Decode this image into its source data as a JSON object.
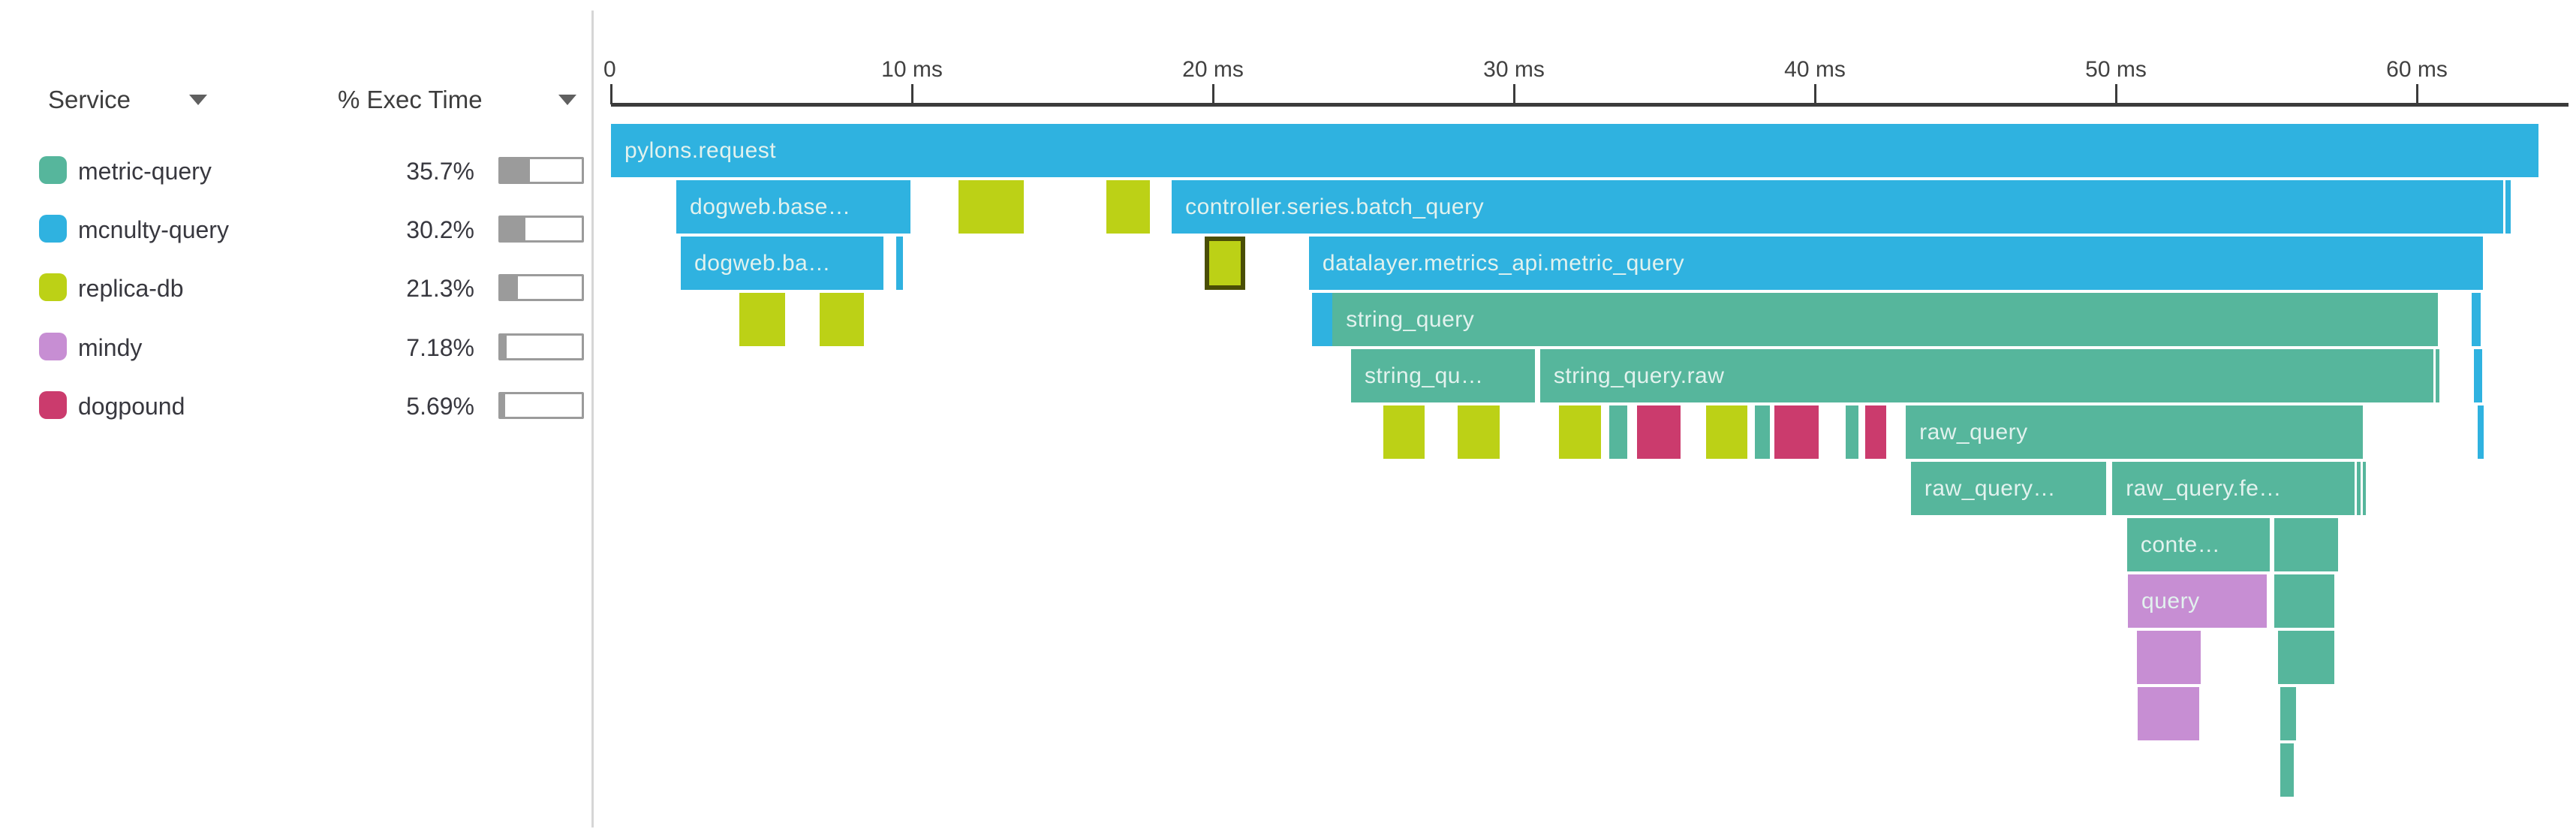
{
  "sidebar": {
    "columns": [
      {
        "label": "Service",
        "sort_icon": "triangle-down"
      },
      {
        "label": "% Exec Time",
        "sort_icon": "triangle-down"
      }
    ],
    "services": [
      {
        "name": "metric-query",
        "color": "#56B69C",
        "exec_time_pct": "35.7%",
        "pct_value": 35.7
      },
      {
        "name": "mcnulty-query",
        "color": "#2FB2E0",
        "exec_time_pct": "30.2%",
        "pct_value": 30.2
      },
      {
        "name": "replica-db",
        "color": "#BCD116",
        "exec_time_pct": "21.3%",
        "pct_value": 21.3
      },
      {
        "name": "mindy",
        "color": "#C78ED3",
        "exec_time_pct": "7.18%",
        "pct_value": 7.18
      },
      {
        "name": "dogpound",
        "color": "#CB3B6D",
        "exec_time_pct": "5.69%",
        "pct_value": 5.69
      }
    ]
  },
  "colors": {
    "services": {
      "metric-query": "#56B69C",
      "mcnulty-query": "#2FB2E0",
      "replica-db": "#BCD116",
      "mindy": "#C78ED3",
      "dogpound": "#CB3B6D"
    },
    "selected_border": "#4A4E06",
    "axis": "#3B3B3B",
    "meter": "#9B9B9B"
  },
  "chart_data": {
    "type": "flamegraph",
    "title": "",
    "unit": "ms",
    "axis": {
      "range_ms": [
        0,
        65
      ],
      "ticks": [
        {
          "ms": 0,
          "label": "0"
        },
        {
          "ms": 10,
          "label": "10 ms"
        },
        {
          "ms": 20,
          "label": "20 ms"
        },
        {
          "ms": 30,
          "label": "30 ms"
        },
        {
          "ms": 40,
          "label": "40 ms"
        },
        {
          "ms": 50,
          "label": "50 ms"
        },
        {
          "ms": 60,
          "label": "60 ms"
        }
      ]
    },
    "spans": [
      {
        "row": 1,
        "service": "mcnulty-query",
        "label": "pylons.request",
        "start_ms": 0,
        "end_ms": 64.05
      },
      {
        "row": 2,
        "service": "mcnulty-query",
        "label": "dogweb.base…",
        "start_ms": 2.17,
        "end_ms": 9.95
      },
      {
        "row": 2,
        "service": "replica-db",
        "label": "",
        "start_ms": 11.55,
        "end_ms": 13.72
      },
      {
        "row": 2,
        "service": "replica-db",
        "label": "",
        "start_ms": 16.46,
        "end_ms": 17.91
      },
      {
        "row": 2,
        "service": "mcnulty-query",
        "label": "controller.series.batch_query",
        "start_ms": 18.63,
        "end_ms": 62.87
      },
      {
        "row": 2,
        "service": "mcnulty-query",
        "label": "",
        "start_ms": 62.95,
        "end_ms": 63.12
      },
      {
        "row": 3,
        "service": "mcnulty-query",
        "label": "dogweb.ba…",
        "start_ms": 2.32,
        "end_ms": 9.05
      },
      {
        "row": 3,
        "service": "mcnulty-query",
        "label": "",
        "start_ms": 9.48,
        "end_ms": 9.7
      },
      {
        "row": 3,
        "service": "replica-db",
        "label": "",
        "start_ms": 19.73,
        "end_ms": 21.07,
        "selected": true
      },
      {
        "row": 3,
        "service": "mcnulty-query",
        "label": "datalayer.metrics_api.metric_query",
        "start_ms": 23.19,
        "end_ms": 62.19
      },
      {
        "row": 4,
        "service": "replica-db",
        "label": "",
        "start_ms": 4.26,
        "end_ms": 5.79
      },
      {
        "row": 4,
        "service": "replica-db",
        "label": "",
        "start_ms": 6.93,
        "end_ms": 8.4
      },
      {
        "row": 4,
        "service": "mcnulty-query",
        "label": "",
        "start_ms": 23.29,
        "end_ms": 23.97
      },
      {
        "row": 4,
        "service": "metric-query",
        "label": "string_query",
        "start_ms": 23.97,
        "end_ms": 60.7
      },
      {
        "row": 4,
        "service": "mcnulty-query",
        "label": "",
        "start_ms": 61.82,
        "end_ms": 62.12
      },
      {
        "row": 5,
        "service": "metric-query",
        "label": "string_qu…",
        "start_ms": 24.59,
        "end_ms": 30.7
      },
      {
        "row": 5,
        "service": "metric-query",
        "label": "string_query.raw",
        "start_ms": 30.87,
        "end_ms": 60.55
      },
      {
        "row": 5,
        "service": "metric-query",
        "label": "",
        "start_ms": 60.62,
        "end_ms": 60.74
      },
      {
        "row": 5,
        "service": "mcnulty-query",
        "label": "",
        "start_ms": 61.9,
        "end_ms": 62.17
      },
      {
        "row": 6,
        "service": "replica-db",
        "label": "",
        "start_ms": 25.66,
        "end_ms": 27.03
      },
      {
        "row": 6,
        "service": "replica-db",
        "label": "",
        "start_ms": 28.13,
        "end_ms": 29.53
      },
      {
        "row": 6,
        "service": "replica-db",
        "label": "",
        "start_ms": 31.5,
        "end_ms": 32.89
      },
      {
        "row": 6,
        "service": "metric-query",
        "label": "",
        "start_ms": 33.17,
        "end_ms": 33.77
      },
      {
        "row": 6,
        "service": "dogpound",
        "label": "",
        "start_ms": 34.09,
        "end_ms": 35.54
      },
      {
        "row": 6,
        "service": "replica-db",
        "label": "",
        "start_ms": 36.38,
        "end_ms": 37.76
      },
      {
        "row": 6,
        "service": "metric-query",
        "label": "",
        "start_ms": 38.0,
        "end_ms": 38.5
      },
      {
        "row": 6,
        "service": "dogpound",
        "label": "",
        "start_ms": 38.65,
        "end_ms": 40.12
      },
      {
        "row": 6,
        "service": "metric-query",
        "label": "",
        "start_ms": 41.02,
        "end_ms": 41.45
      },
      {
        "row": 6,
        "service": "dogpound",
        "label": "",
        "start_ms": 41.67,
        "end_ms": 42.37
      },
      {
        "row": 6,
        "service": "metric-query",
        "label": "raw_query",
        "start_ms": 43.02,
        "end_ms": 58.2
      },
      {
        "row": 6,
        "service": "mcnulty-query",
        "label": "",
        "start_ms": 62.02,
        "end_ms": 62.22
      },
      {
        "row": 7,
        "service": "metric-query",
        "label": "raw_query…",
        "start_ms": 43.19,
        "end_ms": 49.68
      },
      {
        "row": 7,
        "service": "metric-query",
        "label": "raw_query.fe…",
        "start_ms": 49.88,
        "end_ms": 57.93
      },
      {
        "row": 7,
        "service": "metric-query",
        "label": "",
        "start_ms": 58.0,
        "end_ms": 58.13
      },
      {
        "row": 7,
        "service": "metric-query",
        "label": "",
        "start_ms": 58.2,
        "end_ms": 58.3
      },
      {
        "row": 8,
        "service": "metric-query",
        "label": "conte…",
        "start_ms": 50.37,
        "end_ms": 55.11
      },
      {
        "row": 8,
        "service": "metric-query",
        "label": "",
        "start_ms": 55.26,
        "end_ms": 57.38
      },
      {
        "row": 9,
        "service": "mindy",
        "label": "query",
        "start_ms": 50.4,
        "end_ms": 55.01
      },
      {
        "row": 9,
        "service": "metric-query",
        "label": "",
        "start_ms": 55.26,
        "end_ms": 57.26
      },
      {
        "row": 10,
        "service": "mindy",
        "label": "",
        "start_ms": 50.7,
        "end_ms": 52.82
      },
      {
        "row": 10,
        "service": "metric-query",
        "label": "",
        "start_ms": 55.39,
        "end_ms": 57.26
      },
      {
        "row": 11,
        "service": "mindy",
        "label": "",
        "start_ms": 50.72,
        "end_ms": 52.77
      },
      {
        "row": 11,
        "service": "metric-query",
        "label": "",
        "start_ms": 55.46,
        "end_ms": 55.99
      },
      {
        "row": 12,
        "service": "metric-query",
        "label": "",
        "start_ms": 55.46,
        "end_ms": 55.91
      }
    ]
  }
}
